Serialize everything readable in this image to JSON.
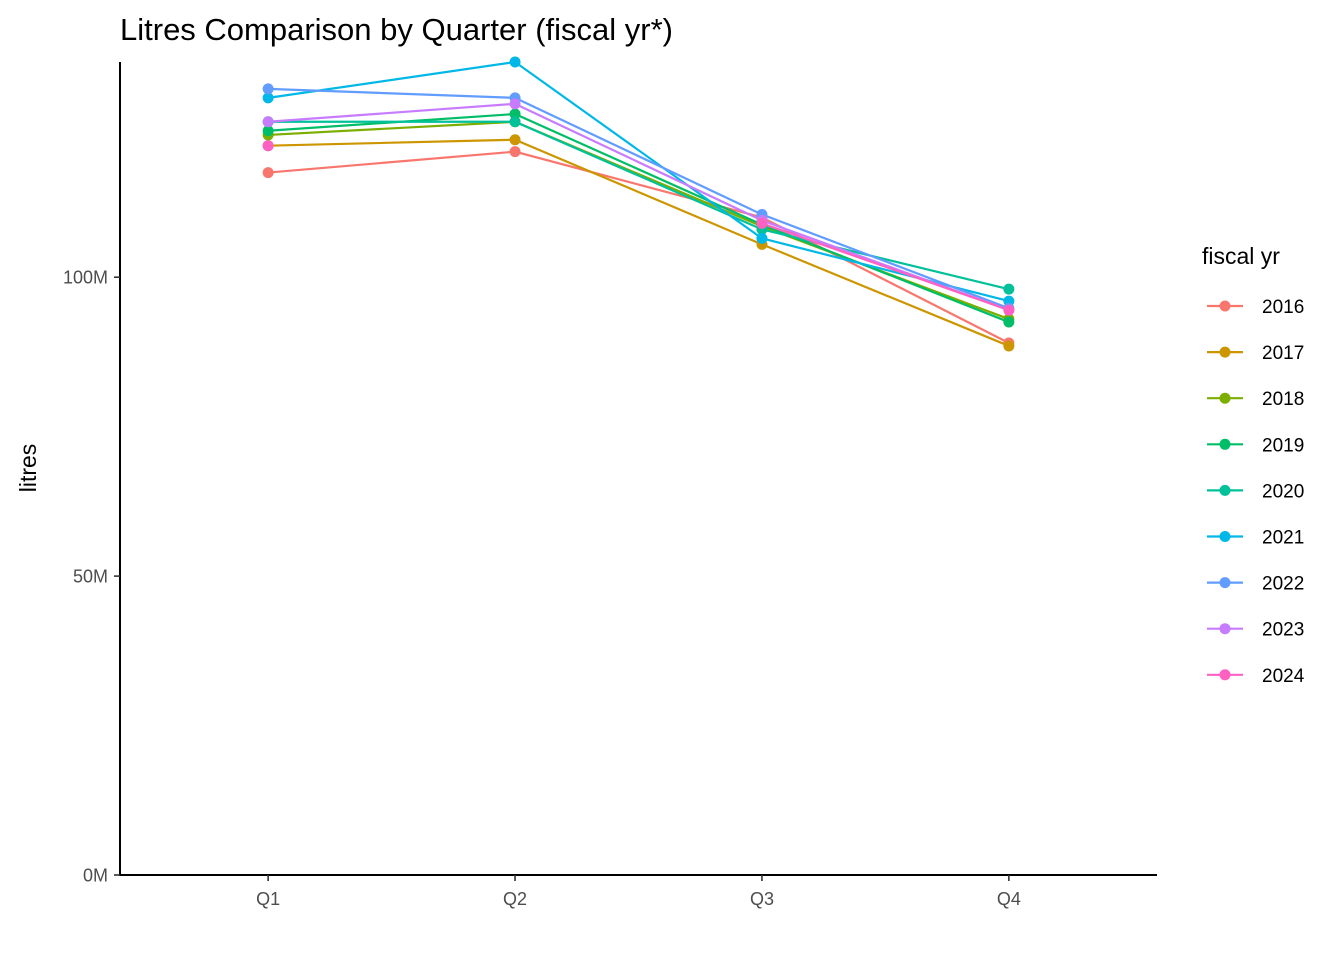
{
  "chart_data": {
    "type": "line",
    "title": "Litres Comparison by Quarter (fiscal yr*)",
    "xlabel": "",
    "ylabel": "litres",
    "categories": [
      "Q1",
      "Q2",
      "Q3",
      "Q4"
    ],
    "yticks": [
      0,
      50,
      100
    ],
    "ytick_labels": [
      "0M",
      "50M",
      "100M"
    ],
    "ylim": [
      0,
      136
    ],
    "y_unit": "M",
    "grid": false,
    "legend": {
      "title": "fiscal yr",
      "placement": "right"
    },
    "series": [
      {
        "name": "2016",
        "color": "#F8766D",
        "values": [
          117.5,
          121.0,
          110.0,
          89.0
        ]
      },
      {
        "name": "2017",
        "color": "#CD9600",
        "values": [
          122.0,
          123.0,
          105.5,
          88.5
        ]
      },
      {
        "name": "2018",
        "color": "#7CAE00",
        "values": [
          123.8,
          126.0,
          108.5,
          93.0
        ]
      },
      {
        "name": "2019",
        "color": "#00BE67",
        "values": [
          124.5,
          127.3,
          108.8,
          92.5
        ]
      },
      {
        "name": "2020",
        "color": "#00C19A",
        "values": [
          126.0,
          126.0,
          108.0,
          98.0
        ]
      },
      {
        "name": "2021",
        "color": "#00B8E7",
        "values": [
          130.0,
          136.0,
          106.5,
          96.0
        ]
      },
      {
        "name": "2022",
        "color": "#619CFF",
        "values": [
          131.5,
          130.0,
          110.5,
          94.8
        ]
      },
      {
        "name": "2023",
        "color": "#C77CFF",
        "values": [
          126.0,
          129.0,
          109.5,
          94.5
        ]
      },
      {
        "name": "2024",
        "color": "#FF61C3",
        "values": [
          122.0,
          null,
          109.0,
          94.5
        ]
      }
    ]
  }
}
